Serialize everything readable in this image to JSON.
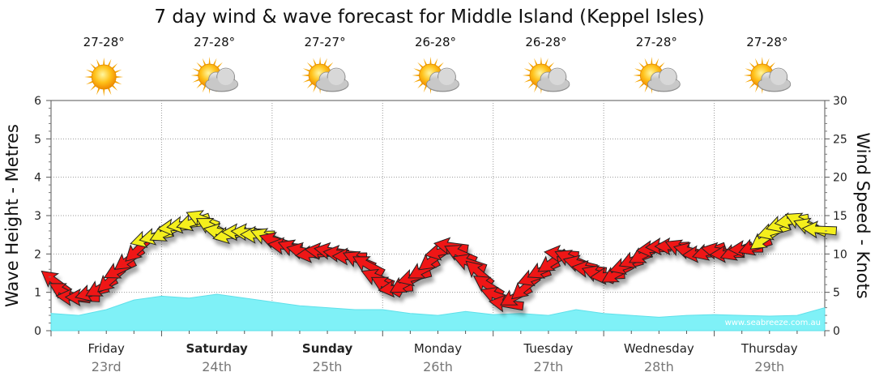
{
  "chart_data": {
    "type": "line",
    "title": "7 day wind & wave forecast for Middle Island (Keppel Isles)",
    "ylabel_left": "Wave Height - Metres",
    "ylabel_right": "Wind Speed - Knots",
    "ylim_left": [
      0,
      6
    ],
    "ylim_right": [
      0,
      30
    ],
    "left_ticks": [
      "0",
      "1",
      "2",
      "3",
      "4",
      "5",
      "6"
    ],
    "right_ticks": [
      "0",
      "5",
      "10",
      "15",
      "20",
      "25",
      "30"
    ],
    "days": [
      {
        "name": "Friday",
        "date": "23rd",
        "temp": "27-28°",
        "icon": "sun-icon",
        "bold": false
      },
      {
        "name": "Saturday",
        "date": "24th",
        "temp": "27-28°",
        "icon": "sun-cloud-icon",
        "bold": true
      },
      {
        "name": "Sunday",
        "date": "25th",
        "temp": "27-27°",
        "icon": "sun-cloud-icon",
        "bold": true
      },
      {
        "name": "Monday",
        "date": "26th",
        "temp": "26-28°",
        "icon": "sun-cloud-icon",
        "bold": false
      },
      {
        "name": "Tuesday",
        "date": "27th",
        "temp": "26-28°",
        "icon": "sun-cloud-icon",
        "bold": false
      },
      {
        "name": "Wednesday",
        "date": "28th",
        "temp": "27-28°",
        "icon": "sun-cloud-icon",
        "bold": false
      },
      {
        "name": "Thursday",
        "date": "29th",
        "temp": "27-28°",
        "icon": "sun-cloud-icon",
        "bold": false
      }
    ],
    "series": [
      {
        "name": "Wave Height",
        "units": "m",
        "color": "#7ff1f7",
        "x_hours": [
          0,
          6,
          12,
          18,
          24,
          30,
          36,
          42,
          48,
          54,
          60,
          66,
          72,
          78,
          84,
          90,
          96,
          102,
          108,
          114,
          120,
          126,
          132,
          138,
          144,
          150,
          156,
          162,
          168
        ],
        "values": [
          0.45,
          0.4,
          0.55,
          0.8,
          0.9,
          0.85,
          0.95,
          0.85,
          0.75,
          0.65,
          0.6,
          0.55,
          0.55,
          0.45,
          0.4,
          0.5,
          0.42,
          0.45,
          0.4,
          0.55,
          0.45,
          0.4,
          0.35,
          0.4,
          0.42,
          0.4,
          0.38,
          0.4,
          0.6
        ]
      },
      {
        "name": "Wind Speed",
        "units": "kn",
        "color_light": "#f4ef1f",
        "color_strong": "#ef1818",
        "strong_threshold": 12,
        "x_hours": [
          0,
          3,
          6,
          9,
          12,
          15,
          18,
          21,
          24,
          27,
          30,
          33,
          36,
          39,
          42,
          45,
          48,
          51,
          54,
          57,
          60,
          63,
          66,
          69,
          72,
          75,
          78,
          81,
          84,
          87,
          90,
          93,
          96,
          99,
          102,
          105,
          108,
          111,
          114,
          117,
          120,
          123,
          126,
          129,
          132,
          135,
          138,
          141,
          144,
          147,
          150,
          153,
          156,
          159,
          162,
          165,
          168
        ],
        "values": [
          7,
          5,
          4,
          5,
          6,
          8,
          10,
          12,
          12.5,
          13.5,
          14,
          14.5,
          13,
          12.5,
          13,
          12.5,
          12,
          11,
          10.5,
          10,
          10.5,
          10,
          9.5,
          8.5,
          6,
          5.5,
          6.5,
          8,
          10,
          11,
          9.5,
          7.5,
          5,
          3.5,
          5,
          7,
          8.5,
          10,
          9,
          8,
          7,
          7.5,
          9,
          10,
          11,
          11,
          10.5,
          10,
          10.5,
          10,
          10.5,
          11,
          12.5,
          14,
          14.5,
          13.5,
          13
        ]
      }
    ]
  },
  "watermark": "www.seabreeze.com.au"
}
